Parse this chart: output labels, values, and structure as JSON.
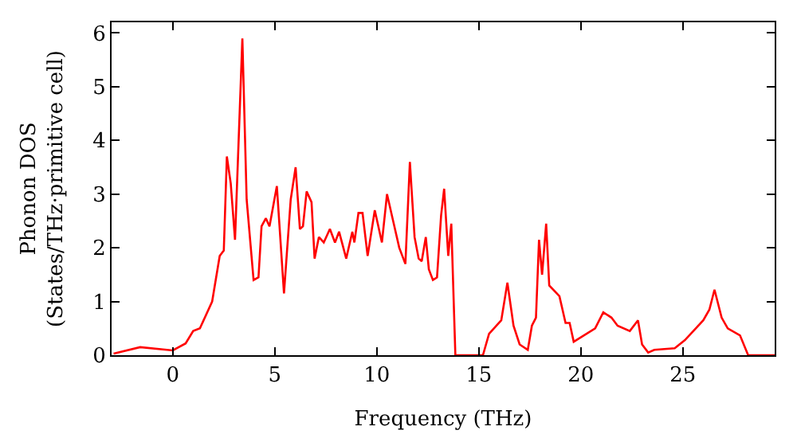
{
  "chart_data": {
    "type": "line",
    "xlabel": "Frequency (THz)",
    "ylabel": "Phonon DOS\n(States/THz·primitive cell)",
    "xlim": [
      -3,
      29.5
    ],
    "ylim": [
      0,
      6.2
    ],
    "xticks": [
      0,
      5,
      10,
      15,
      20,
      25
    ],
    "yticks": [
      0,
      1,
      2,
      3,
      4,
      5,
      6
    ],
    "grid": false,
    "marker": "none",
    "line_style": "solid",
    "series": [
      {
        "color": "#ff0000",
        "x": [
          -2.9,
          -1.6,
          0,
          0.63,
          1.0,
          1.33,
          1.93,
          2.3,
          2.5,
          2.65,
          2.84,
          3.05,
          3.41,
          3.62,
          3.96,
          4.2,
          4.35,
          4.56,
          4.74,
          5.1,
          5.45,
          5.78,
          6.02,
          6.23,
          6.38,
          6.56,
          6.8,
          6.95,
          7.16,
          7.4,
          7.7,
          7.95,
          8.15,
          8.5,
          8.8,
          8.9,
          9.1,
          9.3,
          9.55,
          9.9,
          10.25,
          10.5,
          10.8,
          11.1,
          11.4,
          11.62,
          11.85,
          12.05,
          12.2,
          12.4,
          12.55,
          12.75,
          12.95,
          13.15,
          13.3,
          13.5,
          13.65,
          13.85,
          15.2,
          15.5,
          16.1,
          16.4,
          16.7,
          17.0,
          17.4,
          17.6,
          17.8,
          17.95,
          18.1,
          18.3,
          18.45,
          18.95,
          19.25,
          19.45,
          19.65,
          20.7,
          21.1,
          21.5,
          21.8,
          22.4,
          22.8,
          23.0,
          23.3,
          23.6,
          24.6,
          25.1,
          26.0,
          26.3,
          26.55,
          26.9,
          27.2,
          27.8,
          28.2,
          29.5
        ],
        "values": [
          0.03,
          0.15,
          0.09,
          0.22,
          0.45,
          0.5,
          1.0,
          1.85,
          1.95,
          3.7,
          3.2,
          2.15,
          5.9,
          2.9,
          1.4,
          1.45,
          2.4,
          2.55,
          2.4,
          3.15,
          1.15,
          2.9,
          3.5,
          2.35,
          2.4,
          3.05,
          2.85,
          1.8,
          2.2,
          2.1,
          2.35,
          2.1,
          2.3,
          1.8,
          2.3,
          2.1,
          2.65,
          2.65,
          1.85,
          2.7,
          2.1,
          3.0,
          2.5,
          2.0,
          1.7,
          3.6,
          2.2,
          1.8,
          1.75,
          2.2,
          1.6,
          1.4,
          1.45,
          2.6,
          3.1,
          1.85,
          2.45,
          0,
          0,
          0.4,
          0.65,
          1.35,
          0.55,
          0.2,
          0.1,
          0.55,
          0.7,
          2.15,
          1.5,
          2.45,
          1.3,
          1.1,
          0.6,
          0.6,
          0.25,
          0.5,
          0.8,
          0.7,
          0.55,
          0.45,
          0.65,
          0.2,
          0.05,
          0.1,
          0.13,
          0.28,
          0.65,
          0.85,
          1.22,
          0.7,
          0.5,
          0.37,
          0,
          0
        ]
      }
    ]
  }
}
